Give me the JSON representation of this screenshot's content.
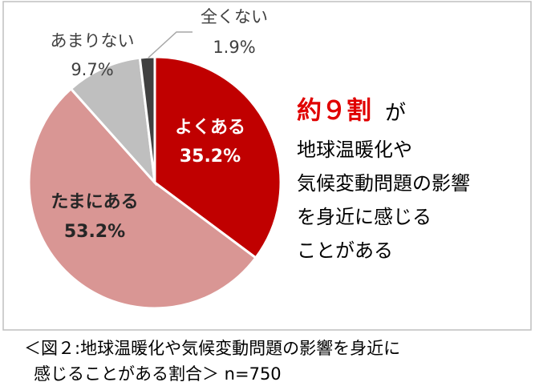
{
  "chart_data": {
    "type": "pie",
    "categories": [
      "よくある",
      "たまにある",
      "あまりない",
      "全くない"
    ],
    "values": [
      35.2,
      53.2,
      9.7,
      1.9
    ],
    "value_labels": [
      "35.2%",
      "53.2%",
      "9.7%",
      "1.9%"
    ],
    "colors": [
      "#c00000",
      "#d99694",
      "#bfbfbf",
      "#404040"
    ],
    "annotation": {
      "highlight": "約９割",
      "suffix": "が",
      "lines": [
        "地球温暖化や",
        "気候変動問題の影響",
        "を身近に感じる",
        "ことがある"
      ]
    }
  },
  "caption": {
    "lines": [
      "＜図２:地球温暖化や気候変動問題の影響を身近に",
      "感じることがある割合＞ n=750"
    ]
  }
}
